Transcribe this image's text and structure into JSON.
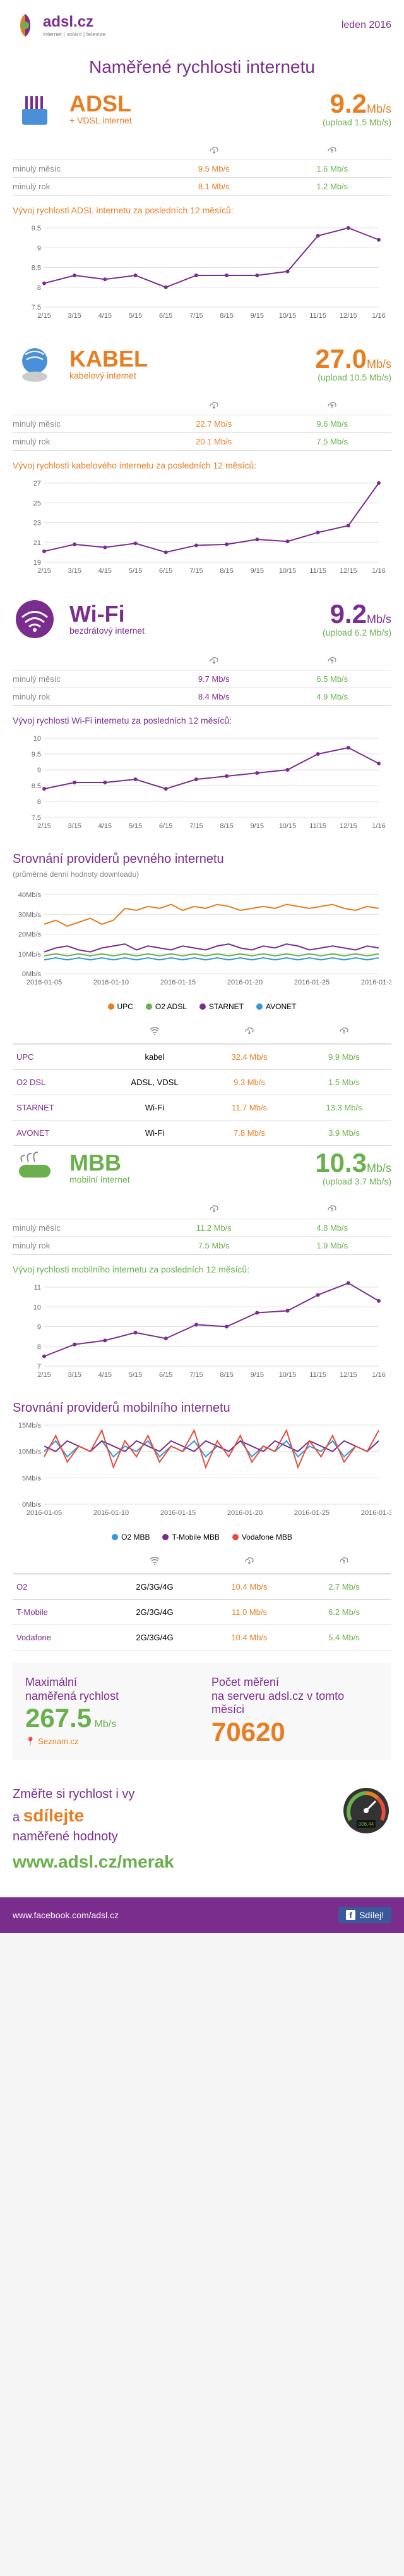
{
  "header": {
    "logo": "adsl.cz",
    "logoSub": "internet | volání | televize",
    "date": "leden 2016"
  },
  "mainTitle": "Naměřené rychlosti internetu",
  "colors": {
    "orange": "#e67e22",
    "purple": "#7b2d8e",
    "green": "#6ab04c",
    "upc": "#e67e22",
    "o2": "#6ab04c",
    "starnet": "#7b2d8e",
    "avonet": "#3498db",
    "o2mbb": "#3498db",
    "tmobile": "#7b2d8e",
    "vodafone": "#e74c3c",
    "grid": "#e0e0e0",
    "bg": "#ffffff"
  },
  "sections": [
    {
      "id": "adsl",
      "name": "ADSL",
      "sub": "+ VDSL internet",
      "color": "orange",
      "speed": "9.2",
      "unit": "Mb/s",
      "upload": "(upload 1.5 Mb/s)",
      "uploadColor": "green",
      "history": [
        {
          "label": "minulý měsíc",
          "down": "9.5 Mb/s",
          "up": "1.6 Mb/s"
        },
        {
          "label": "minulý rok",
          "down": "8.1 Mb/s",
          "up": "1.2 Mb/s"
        }
      ],
      "chartTitle": "Vývoj rychlosti ADSL internetu za posledních 12 měsíců:",
      "chart": {
        "ymin": 7.5,
        "ymax": 9.5,
        "ystep": 0.5,
        "xlabels": [
          "2/15",
          "3/15",
          "4/15",
          "5/15",
          "6/15",
          "7/15",
          "8/15",
          "9/15",
          "10/15",
          "11/15",
          "12/15",
          "1/16"
        ],
        "values": [
          8.1,
          8.3,
          8.2,
          8.3,
          8.0,
          8.3,
          8.3,
          8.3,
          8.4,
          9.3,
          9.5,
          9.2
        ],
        "lineColor": "#7b2d8e"
      }
    },
    {
      "id": "kabel",
      "name": "KABEL",
      "sub": "kabelový internet",
      "color": "orange",
      "speed": "27.0",
      "unit": "Mb/s",
      "upload": "(upload 10.5 Mb/s)",
      "uploadColor": "green",
      "history": [
        {
          "label": "minulý měsíc",
          "down": "22.7 Mb/s",
          "up": "9.6 Mb/s"
        },
        {
          "label": "minulý rok",
          "down": "20.1 Mb/s",
          "up": "7.5 Mb/s"
        }
      ],
      "chartTitle": "Vývoj rychlosti kabelového internetu za posledních 12 měsíců:",
      "chart": {
        "ymin": 19,
        "ymax": 27,
        "ystep": 2,
        "xlabels": [
          "2/15",
          "3/15",
          "4/15",
          "5/15",
          "6/15",
          "7/15",
          "8/15",
          "9/15",
          "10/15",
          "11/15",
          "12/15",
          "1/16"
        ],
        "values": [
          20.1,
          20.8,
          20.5,
          20.9,
          20.0,
          20.7,
          20.8,
          21.3,
          21.1,
          22.0,
          22.7,
          27.0
        ],
        "lineColor": "#7b2d8e"
      }
    },
    {
      "id": "wifi",
      "name": "Wi-Fi",
      "sub": "bezdrátový internet",
      "color": "purple",
      "speed": "9.2",
      "unit": "Mb/s",
      "upload": "(upload 6.2 Mb/s)",
      "uploadColor": "green",
      "history": [
        {
          "label": "minulý měsíc",
          "down": "9.7 Mb/s",
          "up": "6.5 Mb/s"
        },
        {
          "label": "minulý rok",
          "down": "8.4 Mb/s",
          "up": "4.9 Mb/s"
        }
      ],
      "chartTitle": "Vývoj rychlosti Wi-Fi internetu za posledních 12 měsíců:",
      "chart": {
        "ymin": 7.5,
        "ymax": 10,
        "ystep": 0.5,
        "xlabels": [
          "2/15",
          "3/15",
          "4/15",
          "5/15",
          "6/15",
          "7/15",
          "8/15",
          "9/15",
          "10/15",
          "11/15",
          "12/15",
          "1/16"
        ],
        "values": [
          8.4,
          8.6,
          8.6,
          8.7,
          8.4,
          8.7,
          8.8,
          8.9,
          9.0,
          9.5,
          9.7,
          9.2
        ],
        "lineColor": "#7b2d8e"
      }
    }
  ],
  "providerFixed": {
    "title": "Srovnání providerů pevného internetu",
    "sub": "(průměrné denní hodnoty downloadu)",
    "chart": {
      "ymin": 0,
      "ymax": 40,
      "ystep": 10,
      "xlabels": [
        "2016-01-05",
        "2016-01-10",
        "2016-01-15",
        "2016-01-20",
        "2016-01-25",
        "2016-01-30"
      ],
      "series": [
        {
          "name": "UPC",
          "color": "#e67e22",
          "values": [
            25,
            27,
            24,
            26,
            28,
            25,
            27,
            33,
            32,
            34,
            33,
            35,
            32,
            34,
            33,
            35,
            34,
            32,
            33,
            34,
            33,
            35,
            34,
            33,
            34,
            35,
            33,
            32,
            34,
            33
          ]
        },
        {
          "name": "O2 ADSL",
          "color": "#6ab04c",
          "values": [
            9,
            10,
            9,
            10,
            9,
            10,
            9,
            10,
            9,
            10,
            9,
            10,
            9,
            10,
            9,
            10,
            9,
            10,
            9,
            10,
            9,
            10,
            9,
            10,
            9,
            10,
            9,
            10,
            9,
            10
          ]
        },
        {
          "name": "STARNET",
          "color": "#7b2d8e",
          "values": [
            11,
            13,
            14,
            12,
            11,
            13,
            14,
            15,
            12,
            14,
            13,
            12,
            14,
            13,
            12,
            14,
            15,
            13,
            12,
            14,
            13,
            15,
            14,
            12,
            13,
            14,
            13,
            12,
            14,
            13
          ]
        },
        {
          "name": "AVONET",
          "color": "#3498db",
          "values": [
            7,
            8,
            7,
            8,
            7,
            8,
            7,
            8,
            7,
            8,
            7,
            8,
            7,
            8,
            7,
            8,
            7,
            8,
            7,
            8,
            7,
            8,
            7,
            8,
            7,
            8,
            7,
            8,
            7,
            8
          ]
        }
      ]
    },
    "table": {
      "cols": [
        "",
        "",
        "",
        ""
      ],
      "rows": [
        {
          "name": "UPC",
          "type": "kabel",
          "down": "32.4 Mb/s",
          "up": "9.9 Mb/s"
        },
        {
          "name": "O2 DSL",
          "type": "ADSL, VDSL",
          "down": "9.3 Mb/s",
          "up": "1.5 Mb/s"
        },
        {
          "name": "STARNET",
          "type": "Wi-Fi",
          "down": "11.7 Mb/s",
          "up": "13.3 Mb/s"
        },
        {
          "name": "AVONET",
          "type": "Wi-Fi",
          "down": "7.8 Mb/s",
          "up": "3.9 Mb/s"
        }
      ]
    }
  },
  "mbb": {
    "name": "MBB",
    "sub": "mobilní internet",
    "color": "green",
    "speed": "10.3",
    "unit": "Mb/s",
    "upload": "(upload 3.7 Mb/s)",
    "uploadColor": "green",
    "history": [
      {
        "label": "minulý měsíc",
        "down": "11.2 Mb/s",
        "up": "4.8 Mb/s"
      },
      {
        "label": "minulý rok",
        "down": "7.5 Mb/s",
        "up": "1.9 Mb/s"
      }
    ],
    "chartTitle": "Vývoj rychlosti mobilního internetu za posledních 12 měsíců:",
    "chart": {
      "ymin": 7,
      "ymax": 11,
      "ystep": 1,
      "xlabels": [
        "2/15",
        "3/15",
        "4/15",
        "5/15",
        "6/15",
        "7/15",
        "8/15",
        "9/15",
        "10/15",
        "11/15",
        "12/15",
        "1/16"
      ],
      "values": [
        7.5,
        8.1,
        8.3,
        8.7,
        8.4,
        9.1,
        9.0,
        9.7,
        9.8,
        10.6,
        11.2,
        10.3
      ],
      "lineColor": "#7b2d8e"
    }
  },
  "providerMobile": {
    "title": "Srovnání providerů mobilního internetu",
    "chart": {
      "ymin": 0,
      "ymax": 15,
      "ystep": 5,
      "xlabels": [
        "2016-01-05",
        "2016-01-10",
        "2016-01-15",
        "2016-01-20",
        "2016-01-25",
        "2016-01-30"
      ],
      "series": [
        {
          "name": "O2 MBB",
          "color": "#3498db",
          "values": [
            10,
            12,
            9,
            11,
            10,
            12,
            9,
            11,
            10,
            12,
            9,
            11,
            10,
            12,
            9,
            11,
            10,
            12,
            9,
            11,
            10,
            12,
            9,
            11,
            10,
            12,
            9,
            11,
            10,
            12
          ]
        },
        {
          "name": "T-Mobile MBB",
          "color": "#7b2d8e",
          "values": [
            11,
            10,
            12,
            11,
            10,
            12,
            11,
            10,
            12,
            11,
            10,
            12,
            11,
            10,
            12,
            11,
            10,
            12,
            11,
            10,
            12,
            11,
            10,
            12,
            11,
            10,
            12,
            11,
            10,
            12
          ]
        },
        {
          "name": "Vodafone MBB",
          "color": "#e74c3c",
          "values": [
            9,
            13,
            8,
            11,
            10,
            14,
            7,
            12,
            9,
            13,
            8,
            11,
            10,
            14,
            7,
            12,
            9,
            13,
            8,
            11,
            10,
            14,
            7,
            12,
            9,
            13,
            8,
            11,
            10,
            14
          ]
        }
      ]
    },
    "table": {
      "rows": [
        {
          "name": "O2",
          "type": "2G/3G/4G",
          "down": "10.4 Mb/s",
          "up": "2.7 Mb/s"
        },
        {
          "name": "T-Mobile",
          "type": "2G/3G/4G",
          "down": "11.0 Mb/s",
          "up": "6.2 Mb/s"
        },
        {
          "name": "Vodafone",
          "type": "2G/3G/4G",
          "down": "10.4 Mb/s",
          "up": "5.4 Mb/s"
        }
      ]
    }
  },
  "stats": {
    "maxLabel": "Maximální\nnaměřená rychlost",
    "maxValue": "267.5",
    "maxUnit": "Mb/s",
    "maxSource": "Seznam.cz",
    "countLabel": "Počet měření\nna serveru adsl.cz v tomto měsíci",
    "countValue": "70620"
  },
  "cta": {
    "line1": "Změřte si rychlost i vy",
    "line2": "a",
    "highlight": "sdílejte",
    "line3": "naměřené hodnoty",
    "url": "www.adsl.cz/merak"
  },
  "footer": {
    "fb": "www.facebook.com/adsl.cz",
    "share": "Sdílej!"
  }
}
